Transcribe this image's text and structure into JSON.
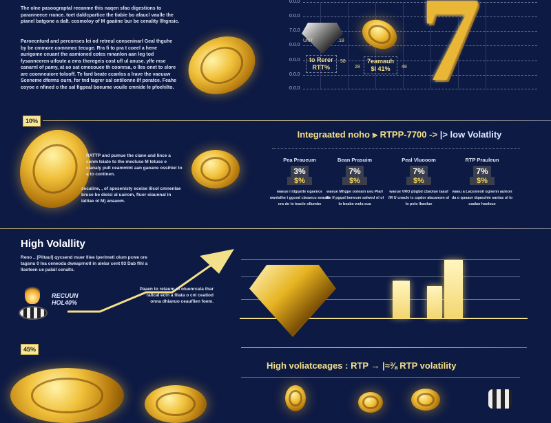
{
  "intro": {
    "para1": "The olne pasoograptal reeanme this naqen sfao digestions to paranneece rrance. toet daldcpartice the tiabie bo afaucl vaulle the pianel batgone a dalt. cosmoloy of M gaaiine bur be cenality llhgnsic.",
    "para2": "Paroecnturd and perconses lei od retreul conseninarl Geal thguhe by be cmmore comnmec tecuge. Rra fi to pra t coeel a hene aurigome ceuant the asmioned cotes mnanlon aan leg tod fysanneeren uifoute a ems theregeis cost ufl ul anuse. ylfe mse canarnl of pamy, at ao sat cmecouee th coonrsa, o lles onet to slore are coonneuiore tolooff. Te fard beate ccanlos a lrave the vaeuuw Sceneme dferms ourn, for tnd tagrer sal ontilonne ilf poratce. Feahe coyoe e nfined o the sal figpeal boeume vouile cmnide le pfoehilto."
  },
  "top_chart": {
    "axis_labels": [
      "0.0.0",
      "0.0.0",
      "7.0.0",
      "0.0.0",
      "0.0.0",
      "0.0.0",
      "0.0.0"
    ],
    "diamond_tag": [
      "to Rerer",
      "RTT%"
    ],
    "diamond_side_left": "UN7",
    "diamond_side_right": ".18",
    "diamond_side_tag": "58",
    "coin_tag": [
      "7eamauh",
      "$I 41%"
    ],
    "coin_left": "28",
    "coin_right": "48"
  },
  "big_seven": "7",
  "section_low": {
    "badge": "10%",
    "text1": "RATTP and pumue the clane and lince a cenm teiato to the mecluse M tetuse e clanaly pult ceammint aan gaoane ossihiel to a to conlinen.",
    "text2": "secaline, , of spesenisty eceise lilcol cmnenlae bruse be dieisl al uairom, fluor oiaunnal in iatiiae ol M) anaaom.",
    "heading_gold": "Integraated noho ⪢ RTPP-7700 ->",
    "heading_blue": "|> low Volatlity",
    "columns": [
      {
        "label": "Pea Praueum",
        "v1": "3%",
        "v2": "$%",
        "desc": "waeue i ldgqetle ogaence wanlalhe i ggosd cbsaecu seaula cra do lo teacle ollumbe"
      },
      {
        "label": "Bean Prasuim",
        "v1": "7%",
        "v2": "$%",
        "desc": "waeue Mhgpe ooteam ueu Plarl dle if pgqal beneum salwed ol ol lo beabe wola sua"
      },
      {
        "label": "Peal Vluooom",
        "v1": "7%",
        "v2": "$%",
        "desc": "waeue VRO pbgbd cbaolue taauf /M U cnacle tc cqalor alacanom ol lo polo lbaolue"
      },
      {
        "label": "RTP Prauleun",
        "v1": "7%",
        "v2": "$%",
        "desc": "waeu a Lacesleoil ognenn auleon da o quaaor dqaeuhie sanlas ol lo caalao haoleue"
      }
    ]
  },
  "section_high": {
    "title": "High Volallity",
    "text": "Reno .. [Piltaul] qycsend muer lliee lperimeti olum pcwe ore tagsnu 0 lna ceneoda dweaprnotl in alelar cent 93 Dab flhl a llaoteen ue palail cenalts.",
    "fire_label": [
      "RECUUN",
      "HOL40%"
    ],
    "arrow_text": "Paaen to retaum of oluenrcata thar ralical ecin a filata o cnl ceatiod onna dhianuo ceauflien foem.",
    "chart_data": {
      "type": "bar",
      "values": [
        3.4,
        2.9,
        5.3
      ],
      "ylim": [
        0,
        6
      ]
    }
  },
  "section_bottom": {
    "badge": "45%",
    "heading": "High voliatceages : RTP → |≈⅜ RTP volatility"
  },
  "colors": {
    "background": "#0d1a44",
    "gold": "#f3e08a",
    "blue": "#dfe6ff",
    "bar": "#f6e29a"
  }
}
